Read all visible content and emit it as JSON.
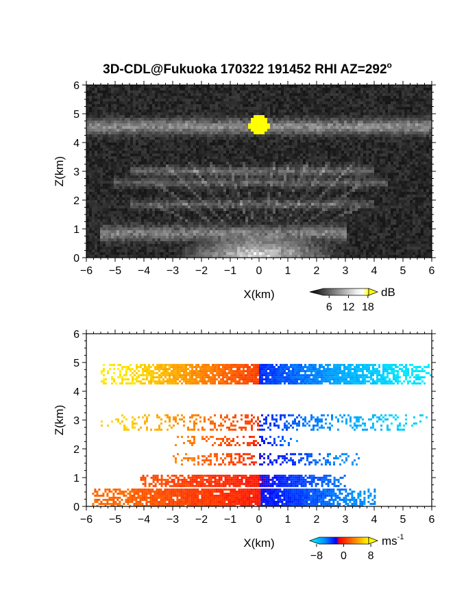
{
  "chart_data": [
    {
      "type": "heatmap",
      "title": "3D-CDL@Fukuoka 170322 191452 RHI AZ=292",
      "title_superscript": "o",
      "xlabel": "X(km)",
      "ylabel": "Z(km)",
      "xlim": [
        -6,
        6
      ],
      "ylim": [
        0,
        6
      ],
      "x_ticks": [
        "-6",
        "-5",
        "-4",
        "-3",
        "-2",
        "-1",
        "0",
        "1",
        "2",
        "3",
        "4",
        "5",
        "6"
      ],
      "y_ticks": [
        "0",
        "1",
        "2",
        "3",
        "4",
        "5",
        "6"
      ],
      "colorbar": {
        "unit": "dB",
        "tick_labels": [
          "6",
          "12",
          "18"
        ],
        "ticks": [
          6,
          12,
          18
        ],
        "range": [
          0,
          21
        ],
        "colormap": "grayscale with yellow saturation"
      },
      "features": [
        {
          "kind": "bright-layer",
          "z_km": 4.55,
          "x_from": -6,
          "x_to": 6,
          "value_db": 9
        },
        {
          "kind": "saturated-core",
          "x_km": 0.0,
          "z_km": 4.6,
          "value_db": 21
        },
        {
          "kind": "faint-layer",
          "z_km": 3.0,
          "x_from": -4.5,
          "x_to": 4.0,
          "value_db": 6
        },
        {
          "kind": "faint-layer",
          "z_km": 2.6,
          "x_from": -5.0,
          "x_to": 4.5,
          "value_db": 5
        },
        {
          "kind": "faint-layer",
          "z_km": 1.85,
          "x_from": -4.5,
          "x_to": 4.0,
          "value_db": 5
        },
        {
          "kind": "bright-layer",
          "z_km": 0.85,
          "x_from": -5.5,
          "x_to": 3.0,
          "value_db": 8
        },
        {
          "kind": "near-surface-fan",
          "x_km": 0.0,
          "z_km": 0.1,
          "value_db": 16
        }
      ]
    },
    {
      "type": "heatmap",
      "xlabel": "X(km)",
      "ylabel": "Z(km)",
      "xlim": [
        -6,
        6
      ],
      "ylim": [
        0,
        6
      ],
      "x_ticks": [
        "-6",
        "-5",
        "-4",
        "-3",
        "-2",
        "-1",
        "0",
        "1",
        "2",
        "3",
        "4",
        "5",
        "6"
      ],
      "y_ticks": [
        "0",
        "1",
        "2",
        "3",
        "4",
        "5",
        "6"
      ],
      "colorbar": {
        "unit": "ms",
        "unit_superscript": "-1",
        "tick_labels": [
          "-8",
          "0",
          "8"
        ],
        "ticks": [
          -8,
          0,
          8
        ],
        "range": [
          -10,
          10
        ],
        "colormap": "blue-cyan / red-yellow diverging"
      },
      "layers": [
        {
          "z_from": 4.3,
          "z_to": 4.95,
          "x_from": -5.5,
          "x_to": 6.0,
          "v_left": 9,
          "v_right": -9,
          "density": 0.9
        },
        {
          "z_from": 2.65,
          "z_to": 3.2,
          "x_from": -5.5,
          "x_to": 5.8,
          "v_left": 8,
          "v_right": -8,
          "density": 0.35
        },
        {
          "z_from": 2.1,
          "z_to": 2.45,
          "x_from": -3.0,
          "x_to": 1.5,
          "v_left": 5,
          "v_right": -5,
          "density": 0.35
        },
        {
          "z_from": 1.45,
          "z_to": 1.85,
          "x_from": -3.0,
          "x_to": 3.5,
          "v_left": 5,
          "v_right": -5,
          "density": 0.4
        },
        {
          "z_from": 0.7,
          "z_to": 1.1,
          "x_from": -4.2,
          "x_to": 3.0,
          "v_left": 3,
          "v_right": -4,
          "density": 0.85
        },
        {
          "z_from": 0.0,
          "z_to": 0.62,
          "x_from": -5.8,
          "x_to": 4.0,
          "v_left": 4,
          "v_right": -5,
          "density": 0.95
        }
      ]
    }
  ]
}
